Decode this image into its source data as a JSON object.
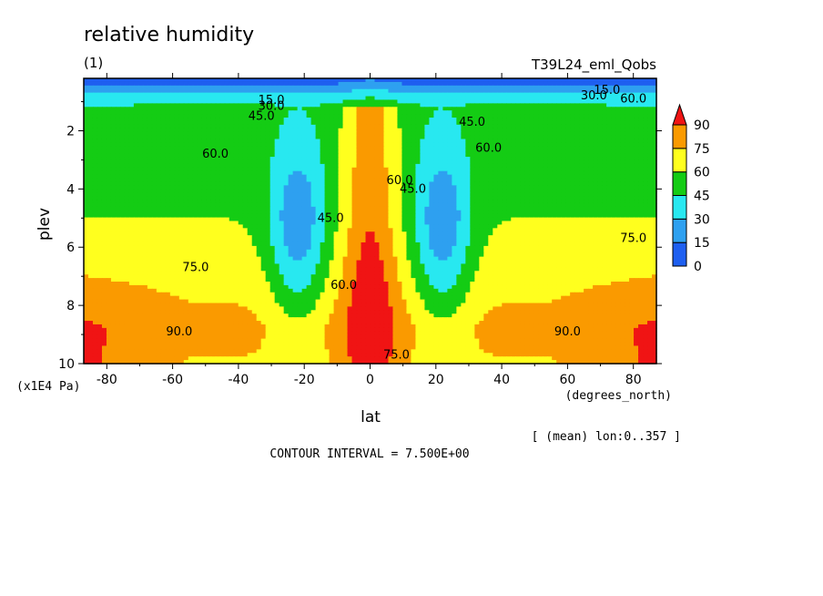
{
  "chart_data": {
    "type": "heatmap",
    "title": "relative humidity",
    "subtitle": "(1)",
    "run_label": "T39L24_eml_Qobs",
    "xlabel": "lat",
    "x_units": "(degrees_north)",
    "ylabel": "plev",
    "y_units": "(x1E4 Pa)",
    "xlim": [
      -87,
      87
    ],
    "ylim": [
      10,
      0.2
    ],
    "x_ticks": [
      -80,
      -60,
      -40,
      -20,
      0,
      20,
      40,
      60,
      80
    ],
    "x_tick_labels": [
      "-80",
      "-60",
      "-40",
      "-20",
      "0",
      "20",
      "40",
      "60",
      "80"
    ],
    "y_ticks": [
      2,
      4,
      6,
      8,
      10
    ],
    "y_tick_labels": [
      "2",
      "4",
      "6",
      "8",
      "10"
    ],
    "levels": [
      0,
      15,
      30,
      45,
      60,
      75,
      90
    ],
    "level_colors": [
      "#1e5ff0",
      "#2ea0f0",
      "#28e8f0",
      "#14cc14",
      "#ffff1e",
      "#fa9a00",
      "#f01414"
    ],
    "colorbar_labels": [
      "0",
      "15",
      "30",
      "45",
      "60",
      "75",
      "90"
    ],
    "contour_interval_text": "CONTOUR INTERVAL = 7.500E+00",
    "mean_note": "[ (mean) lon:0..357 ]",
    "contour_labels": [
      {
        "text": "15.0",
        "lat": -30,
        "p": 0.95
      },
      {
        "text": "30.0",
        "lat": -30,
        "p": 1.15
      },
      {
        "text": "45.0",
        "lat": -33,
        "p": 1.5
      },
      {
        "text": "60.0",
        "lat": -47,
        "p": 2.8
      },
      {
        "text": "75.0",
        "lat": -53,
        "p": 6.7
      },
      {
        "text": "90.0",
        "lat": -58,
        "p": 8.9
      },
      {
        "text": "45.0",
        "lat": -12,
        "p": 5.0
      },
      {
        "text": "60.0",
        "lat": -8,
        "p": 7.3
      },
      {
        "text": "60.0",
        "lat": 9,
        "p": 3.7
      },
      {
        "text": "45.0",
        "lat": 13,
        "p": 4.0
      },
      {
        "text": "75.0",
        "lat": 8,
        "p": 9.7
      },
      {
        "text": "45.0",
        "lat": 31,
        "p": 1.7
      },
      {
        "text": "60.0",
        "lat": 36,
        "p": 2.6
      },
      {
        "text": "75.0",
        "lat": 80,
        "p": 5.7
      },
      {
        "text": "90.0",
        "lat": 60,
        "p": 8.9
      },
      {
        "text": "30.0",
        "lat": 68,
        "p": 0.8
      },
      {
        "text": "15.0",
        "lat": 72,
        "p": 0.6
      },
      {
        "text": "60.0",
        "lat": 80,
        "p": 0.9
      }
    ],
    "grid": false
  }
}
